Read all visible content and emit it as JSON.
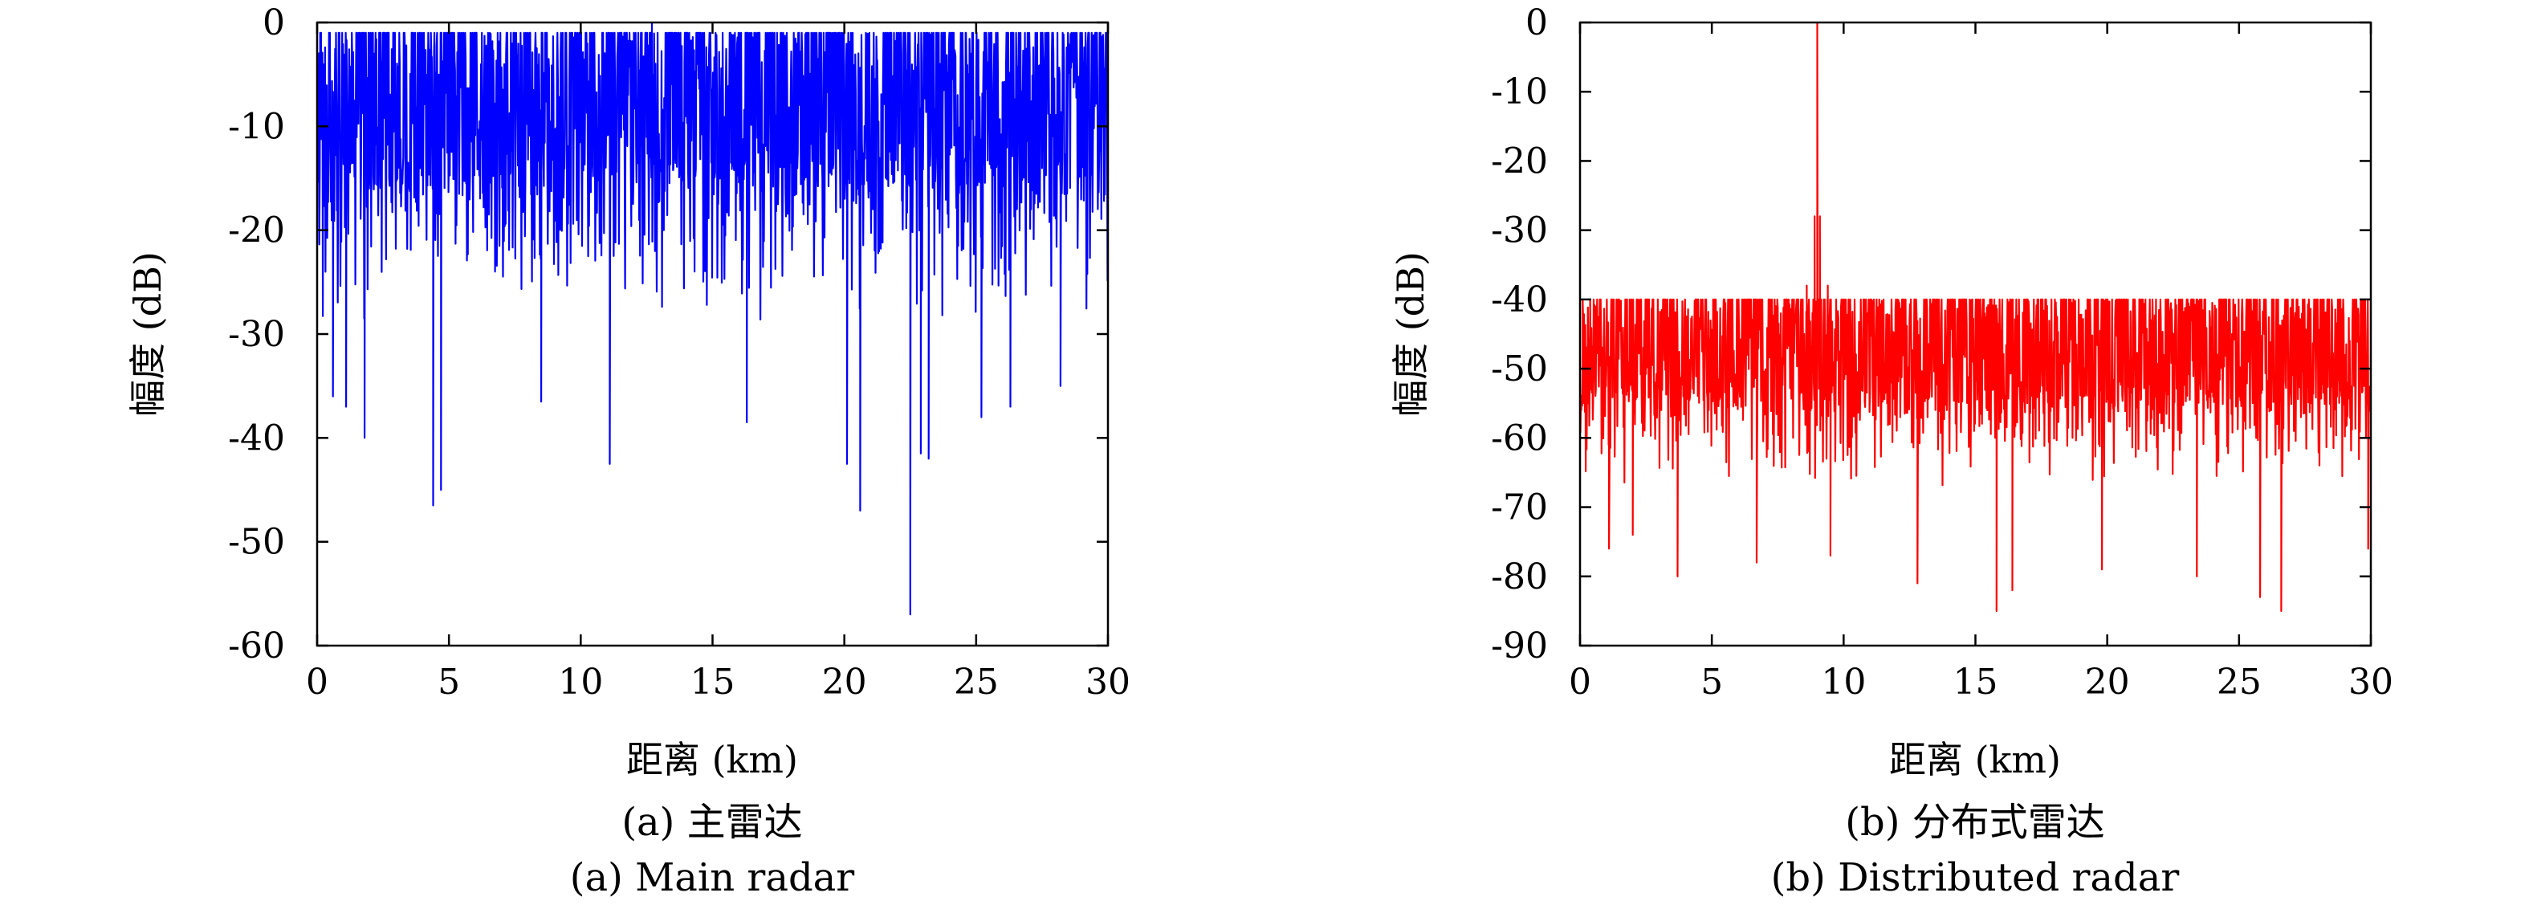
{
  "chart_data": [
    {
      "id": "a",
      "type": "line",
      "caption_cn": "(a) 主雷达",
      "caption_en": "(a) Main radar",
      "xlabel": "距离 (km)",
      "ylabel": "幅度 (dB)",
      "xlim": [
        0,
        30
      ],
      "ylim": [
        -60,
        0
      ],
      "xticks": [
        "0",
        "5",
        "10",
        "15",
        "20",
        "25",
        "30"
      ],
      "yticks": [
        "0",
        "-10",
        "-20",
        "-30",
        "-40",
        "-50",
        "-60"
      ],
      "xtick_values": [
        0,
        5,
        10,
        15,
        20,
        25,
        30
      ],
      "ytick_values": [
        0,
        -10,
        -20,
        -30,
        -40,
        -50,
        -60
      ],
      "grid": false,
      "series": [
        {
          "color": "#0000ff",
          "noise": {
            "upper_envelope_db": -2,
            "mean_db": -13,
            "typical_min_db": -30
          },
          "points": [
            {
              "x": 0.0,
              "y": -13
            },
            {
              "x": 0.6,
              "y": -36
            },
            {
              "x": 1.1,
              "y": -37
            },
            {
              "x": 1.8,
              "y": -40
            },
            {
              "x": 2.5,
              "y": -1
            },
            {
              "x": 4.4,
              "y": -46.5
            },
            {
              "x": 4.7,
              "y": -45
            },
            {
              "x": 5.2,
              "y": -1
            },
            {
              "x": 8.5,
              "y": -36.5
            },
            {
              "x": 11.1,
              "y": -42.5
            },
            {
              "x": 12.7,
              "y": 0
            },
            {
              "x": 16.3,
              "y": -38.5
            },
            {
              "x": 20.1,
              "y": -42.5
            },
            {
              "x": 20.6,
              "y": -47
            },
            {
              "x": 22.5,
              "y": -57
            },
            {
              "x": 22.9,
              "y": -41.5
            },
            {
              "x": 23.2,
              "y": -42
            },
            {
              "x": 24.6,
              "y": -1
            },
            {
              "x": 25.2,
              "y": -38
            },
            {
              "x": 26.3,
              "y": -37
            },
            {
              "x": 28.2,
              "y": -35
            },
            {
              "x": 30.0,
              "y": -2
            }
          ]
        }
      ]
    },
    {
      "id": "b",
      "type": "line",
      "caption_cn": "(b) 分布式雷达",
      "caption_en": "(b) Distributed radar",
      "xlabel": "距离 (km)",
      "ylabel": "幅度 (dB)",
      "xlim": [
        0,
        30
      ],
      "ylim": [
        -90,
        0
      ],
      "xticks": [
        "0",
        "5",
        "10",
        "15",
        "20",
        "25",
        "30"
      ],
      "yticks": [
        "0",
        "-10",
        "-20",
        "-30",
        "-40",
        "-50",
        "-60",
        "-70",
        "-80",
        "-90"
      ],
      "xtick_values": [
        0,
        5,
        10,
        15,
        20,
        25,
        30
      ],
      "ytick_values": [
        0,
        -10,
        -20,
        -30,
        -40,
        -50,
        -60,
        -70,
        -80,
        -90
      ],
      "grid": false,
      "series": [
        {
          "color": "#ff0000",
          "noise": {
            "upper_envelope_db": -41,
            "mean_db": -52,
            "typical_min_db": -68
          },
          "points": [
            {
              "x": 0.0,
              "y": -52
            },
            {
              "x": 0.1,
              "y": -40
            },
            {
              "x": 1.1,
              "y": -76
            },
            {
              "x": 2.0,
              "y": -74
            },
            {
              "x": 3.7,
              "y": -80
            },
            {
              "x": 6.7,
              "y": -78
            },
            {
              "x": 8.6,
              "y": -38
            },
            {
              "x": 8.9,
              "y": -28
            },
            {
              "x": 9.0,
              "y": 0
            },
            {
              "x": 9.1,
              "y": -28
            },
            {
              "x": 9.4,
              "y": -38
            },
            {
              "x": 9.5,
              "y": -77
            },
            {
              "x": 12.8,
              "y": -81
            },
            {
              "x": 15.8,
              "y": -85
            },
            {
              "x": 16.4,
              "y": -82
            },
            {
              "x": 19.8,
              "y": -79
            },
            {
              "x": 23.4,
              "y": -80
            },
            {
              "x": 25.8,
              "y": -83
            },
            {
              "x": 26.6,
              "y": -85
            },
            {
              "x": 29.9,
              "y": -76
            },
            {
              "x": 30.0,
              "y": -48
            }
          ]
        }
      ]
    }
  ]
}
